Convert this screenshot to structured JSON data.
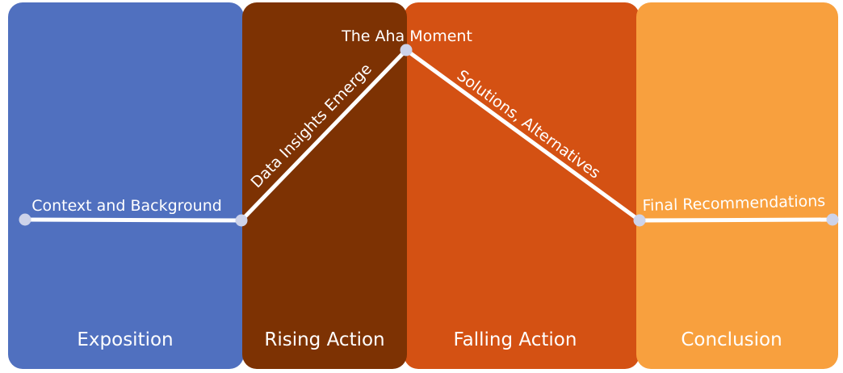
{
  "colors": {
    "exposition": "#5070bf",
    "rising_action": "#7d3203",
    "falling_action": "#d45113",
    "conclusion": "#f8a03e",
    "line": "#ffffff",
    "points": "#cdd3ea"
  },
  "stages": {
    "exposition": "Exposition",
    "rising_action": "Rising Action",
    "falling_action": "Falling Action",
    "conclusion": "Conclusion"
  },
  "segments": {
    "context": "Context and Background",
    "insights": "Data Insights Emerge",
    "aha": "The Aha Moment",
    "solutions": "Solutions, Alternatives",
    "recommendations": "Final Recommendations"
  }
}
